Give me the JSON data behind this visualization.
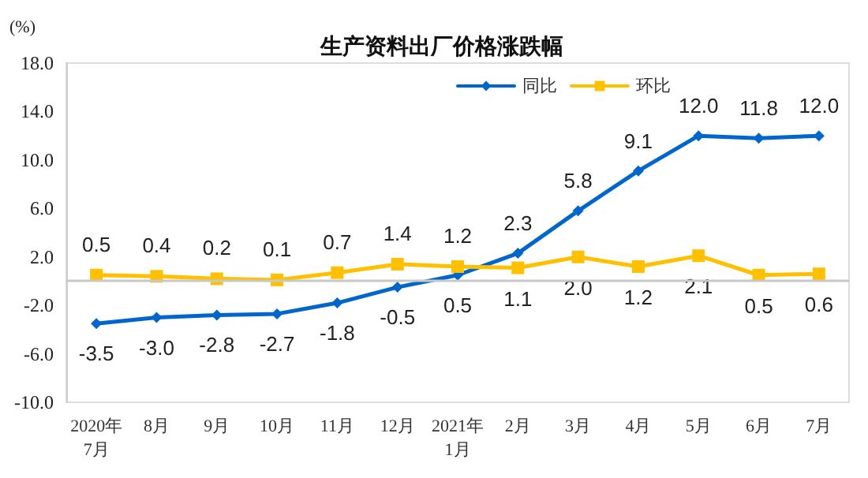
{
  "chart_data": {
    "type": "line",
    "title": "生产资料出厂价格涨跌幅",
    "ylabel": "(%)",
    "categories": [
      "2020年\n7月",
      "8月",
      "9月",
      "10月",
      "11月",
      "12月",
      "2021年\n1月",
      "2月",
      "3月",
      "4月",
      "5月",
      "6月",
      "7月"
    ],
    "series": [
      {
        "name": "同比",
        "color": "#0066cc",
        "marker": "diamond",
        "values": [
          -3.5,
          -3.0,
          -2.8,
          -2.7,
          -1.8,
          -0.5,
          0.5,
          2.3,
          5.8,
          9.1,
          12.0,
          11.8,
          12.0
        ],
        "value_labels": [
          "-3.5",
          "-3.0",
          "-2.8",
          "-2.7",
          "-1.8",
          "-0.5",
          "0.5",
          "2.3",
          "5.8",
          "9.1",
          "12.0",
          "11.8",
          "12.0"
        ]
      },
      {
        "name": "环比",
        "color": "#ffc000",
        "marker": "square",
        "values": [
          0.5,
          0.4,
          0.2,
          0.1,
          0.7,
          1.4,
          1.2,
          1.1,
          2.0,
          1.2,
          2.1,
          0.5,
          0.6
        ],
        "value_labels": [
          "0.5",
          "0.4",
          "0.2",
          "0.1",
          "0.7",
          "1.4",
          "1.2",
          "1.1",
          "2.0",
          "1.2",
          "2.1",
          "0.5",
          "0.6"
        ]
      }
    ],
    "ylim": [
      -10,
      18
    ],
    "yticks": [
      {
        "value": -10,
        "label": "-10.0"
      },
      {
        "value": -6,
        "label": "-6.0"
      },
      {
        "value": -2,
        "label": "-2.0"
      },
      {
        "value": 2,
        "label": "2.0"
      },
      {
        "value": 6,
        "label": "6.0"
      },
      {
        "value": 10,
        "label": "10.0"
      },
      {
        "value": 14,
        "label": "14.0"
      },
      {
        "value": 18,
        "label": "18.0"
      }
    ],
    "ref_lines": [
      {
        "axis": "y",
        "value": 0,
        "color": "#c8c8c8"
      }
    ],
    "grid": false,
    "legend": "top right",
    "line_style": "solid"
  }
}
